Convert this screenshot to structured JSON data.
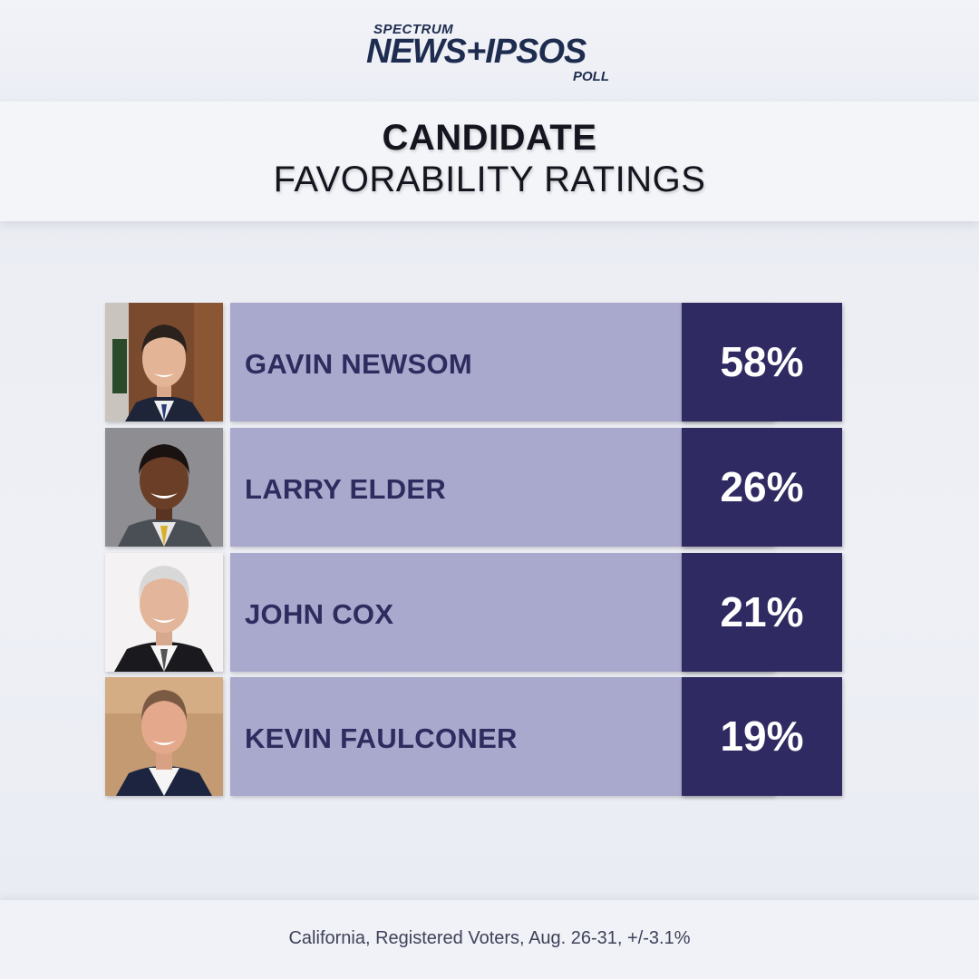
{
  "logo": {
    "spectrum": "SPECTRUM",
    "main": "NEWS+IPSOS",
    "poll": "POLL"
  },
  "title": {
    "line1": "CANDIDATE",
    "line2": "FAVORABILITY RATINGS"
  },
  "candidates": [
    {
      "name": "GAVIN NEWSOM",
      "percent": "58%"
    },
    {
      "name": "LARRY ELDER",
      "percent": "26%"
    },
    {
      "name": "JOHN COX",
      "percent": "21%"
    },
    {
      "name": "KEVIN FAULCONER",
      "percent": "19%"
    }
  ],
  "footer": "California, Registered Voters, Aug. 26-31, +/-3.1%",
  "colors": {
    "name_box": "#a9a8cd",
    "percent_box": "#2f2b62",
    "name_text": "#2e2b5e",
    "logo": "#1e2d4f"
  }
}
